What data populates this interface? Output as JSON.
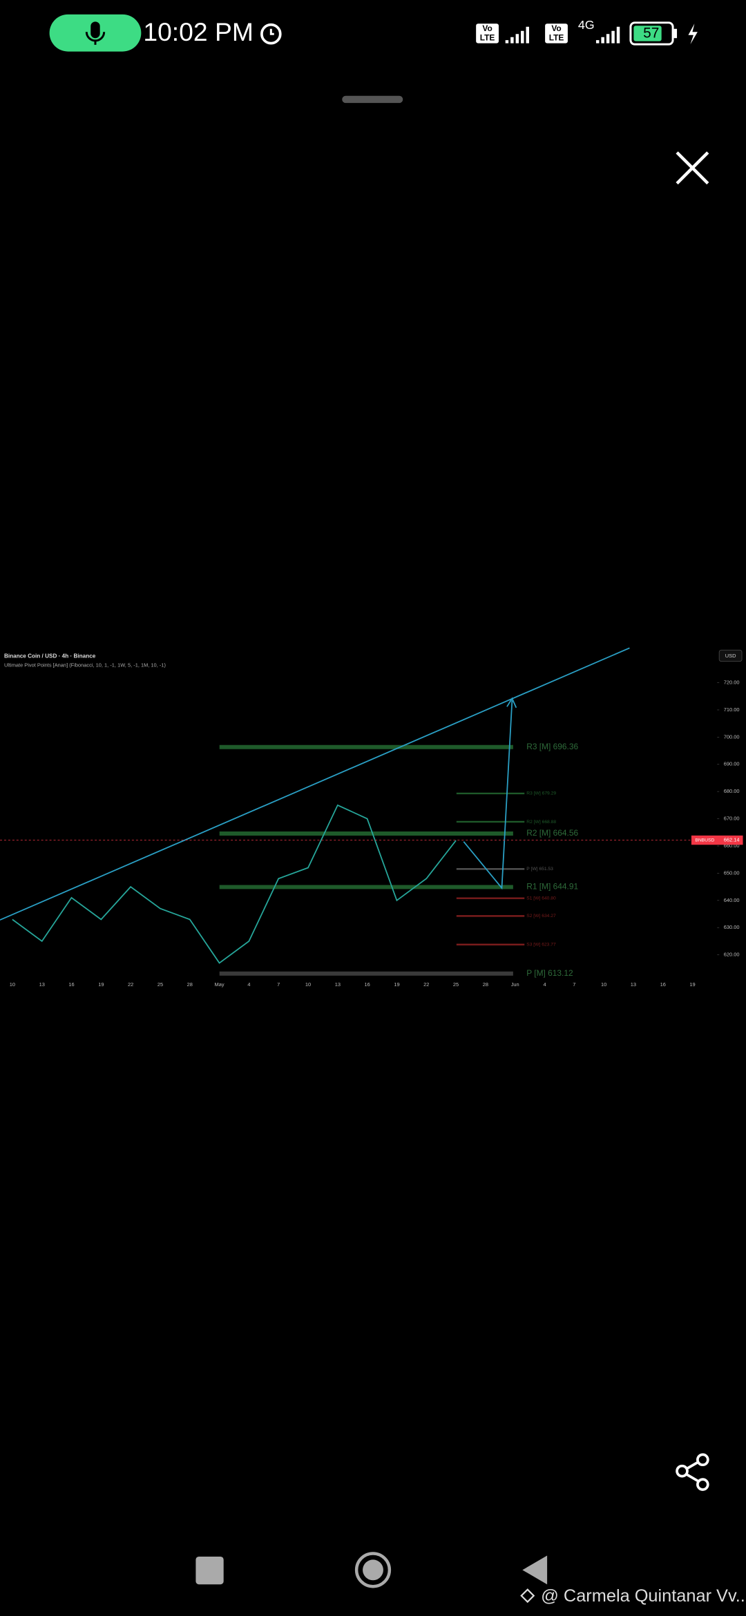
{
  "status_bar": {
    "time": "10:02 PM",
    "badges": [
      {
        "top": "Vo",
        "bottom": "LTE"
      },
      {
        "top": "Vo",
        "bottom": "LTE"
      }
    ],
    "network": "4G",
    "battery": "57"
  },
  "chart_data": {
    "type": "line",
    "title": "Binance Coin / USD · 4h · Binance",
    "subtitle": "Ultimate Pivot Points [Anan] (Fibonacci, 10, 1, -1, 1W, 5, -1, 1M, 10, -1)",
    "currency": "USD",
    "categories": [
      "10",
      "13",
      "16",
      "19",
      "22",
      "25",
      "28",
      "May",
      "4",
      "7",
      "10",
      "13",
      "16",
      "19",
      "22",
      "25",
      "28",
      "Jun",
      "4",
      "7",
      "10",
      "13",
      "16",
      "19"
    ],
    "series": [
      {
        "name": "BNBUSD",
        "color": "#26a69a",
        "values": [
          633,
          625,
          641,
          633,
          645,
          637,
          633,
          617,
          625,
          648,
          652,
          675,
          670,
          640,
          648,
          662,
          null,
          null,
          null,
          null,
          null,
          null,
          null,
          null
        ]
      }
    ],
    "last_price": {
      "name": "BNBUSD",
      "value": 662.14,
      "color": "#f23645"
    },
    "pivots": [
      {
        "label": "R3 [M] 696.36",
        "value": 696.36,
        "color": "#1e5a2a",
        "period": "month"
      },
      {
        "label": "R2 [M] 664.56",
        "value": 664.56,
        "color": "#1e5a2a",
        "period": "month"
      },
      {
        "label": "R1 [M] 644.91",
        "value": 644.91,
        "color": "#1e5a2a",
        "period": "month"
      },
      {
        "label": "P [M] 613.12",
        "value": 613.12,
        "color": "#3a3a3a",
        "period": "month"
      },
      {
        "label": "R3 [W] 679.29",
        "value": 679.29,
        "color": "#1e5a2a",
        "period": "week"
      },
      {
        "label": "R2 [W] 668.88",
        "value": 668.88,
        "color": "#1e5a2a",
        "period": "week"
      },
      {
        "label": "P [W] 651.53",
        "value": 651.53,
        "color": "#555555",
        "period": "week"
      },
      {
        "label": "S1 [W] 640.80",
        "value": 640.8,
        "color": "#7a1c1c",
        "period": "week"
      },
      {
        "label": "S2 [W] 634.27",
        "value": 634.27,
        "color": "#7a1c1c",
        "period": "week"
      },
      {
        "label": "S3 [W] 623.77",
        "value": 623.77,
        "color": "#7a1c1c",
        "period": "week"
      }
    ],
    "ylim": [
      612,
      732
    ],
    "yticks": [
      {
        "value": 720,
        "label": "720.00"
      },
      {
        "value": 710,
        "label": "710.00"
      },
      {
        "value": 700,
        "label": "700.00"
      },
      {
        "value": 690,
        "label": "690.00"
      },
      {
        "value": 680,
        "label": "680.00"
      },
      {
        "value": 670,
        "label": "670.00"
      },
      {
        "value": 660,
        "label": "660.00"
      },
      {
        "value": 650,
        "label": "650.00"
      },
      {
        "value": 640,
        "label": "640.00"
      },
      {
        "value": 630,
        "label": "630.00"
      },
      {
        "value": 620,
        "label": "620.00"
      }
    ],
    "grid": false
  },
  "footer": {
    "credit": "@ Carmela Quintanar Vv..."
  }
}
